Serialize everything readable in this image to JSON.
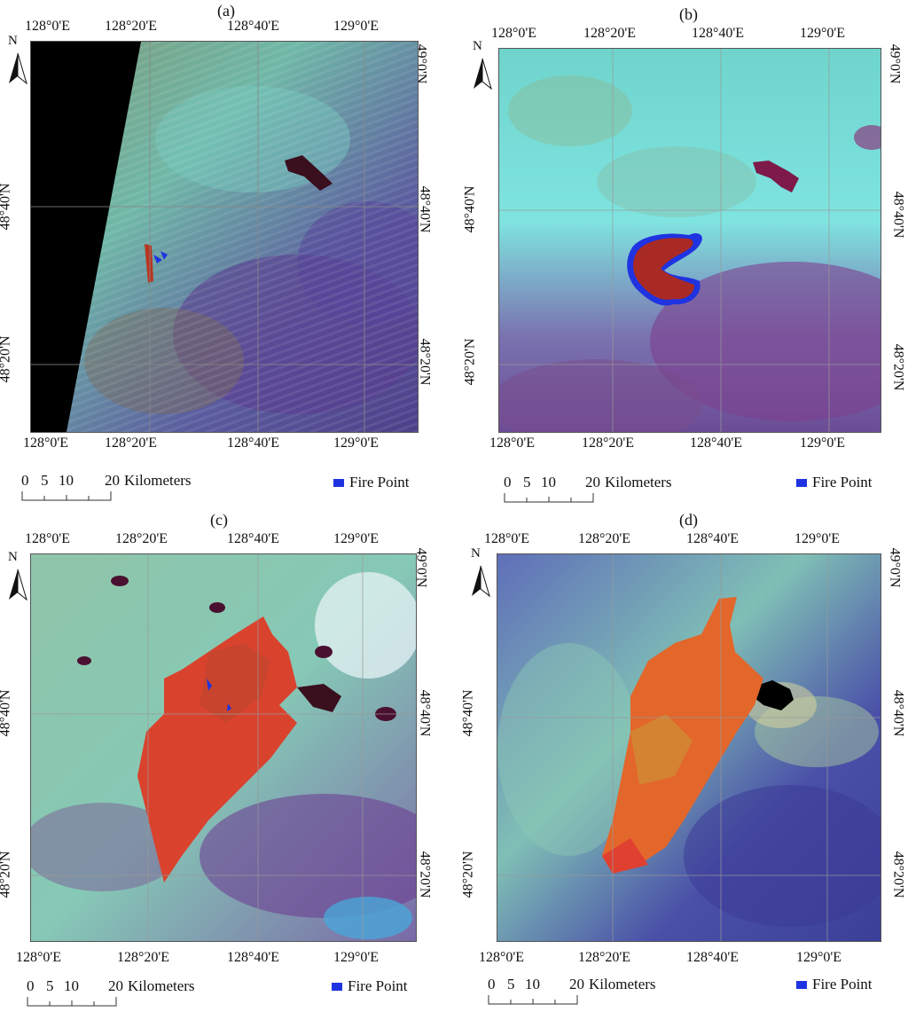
{
  "figure": {
    "panels": [
      {
        "id": "a",
        "label": "(a)"
      },
      {
        "id": "b",
        "label": "(b)"
      },
      {
        "id": "c",
        "label": "(c)"
      },
      {
        "id": "d",
        "label": "(d)"
      }
    ],
    "lon_ticks": [
      "128°0'E",
      "128°20'E",
      "128°40'E",
      "129°0'E"
    ],
    "lat_ticks": [
      "49°0'N",
      "48°40'N",
      "48°20'N"
    ],
    "north_label": "N",
    "scale_bar": {
      "numbers": [
        "0",
        "5",
        "10",
        "20"
      ],
      "unit": "Kilometers"
    },
    "legend": {
      "label": "Fire Point",
      "color": "#1f33e0"
    }
  }
}
